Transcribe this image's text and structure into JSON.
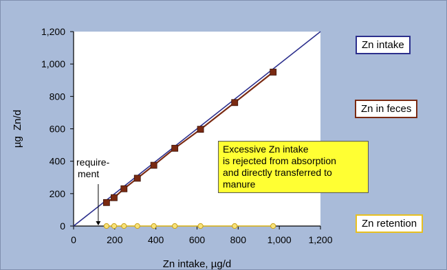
{
  "chart_data": {
    "type": "line",
    "title": "",
    "xlabel": "Zn intake, µg/d",
    "ylabel": "µg  Zn/d",
    "xlim": [
      0,
      1200
    ],
    "ylim": [
      0,
      1200
    ],
    "x_ticks": [
      "0",
      "200",
      "400",
      "600",
      "800",
      "1,000",
      "1,200"
    ],
    "y_ticks": [
      "0",
      "200",
      "400",
      "600",
      "800",
      "1,000",
      "1,200"
    ],
    "grid": false,
    "series": [
      {
        "name": "Zn intake",
        "color": "#2b2e8c",
        "marker": "none",
        "x": [
          0,
          1200
        ],
        "y": [
          0,
          1200
        ]
      },
      {
        "name": "Zn in feces",
        "color": "#7a2a12",
        "marker": "square",
        "x": [
          160,
          197,
          245,
          310,
          390,
          492,
          617,
          783,
          970
        ],
        "y": [
          145,
          175,
          230,
          295,
          375,
          480,
          597,
          762,
          950
        ]
      },
      {
        "name": "Zn retention",
        "color": "#e8c020",
        "marker": "circle",
        "x": [
          160,
          197,
          245,
          310,
          390,
          492,
          617,
          783,
          970
        ],
        "y": [
          0,
          0,
          0,
          0,
          0,
          0,
          0,
          0,
          0
        ]
      }
    ],
    "annotations": {
      "requirement_lines": [
        "require-",
        "ment"
      ],
      "requirement_x": 120,
      "callout_lines": [
        "Excessive Zn intake",
        "is rejected from absorption",
        "and directly transferred to",
        "manure"
      ]
    }
  }
}
